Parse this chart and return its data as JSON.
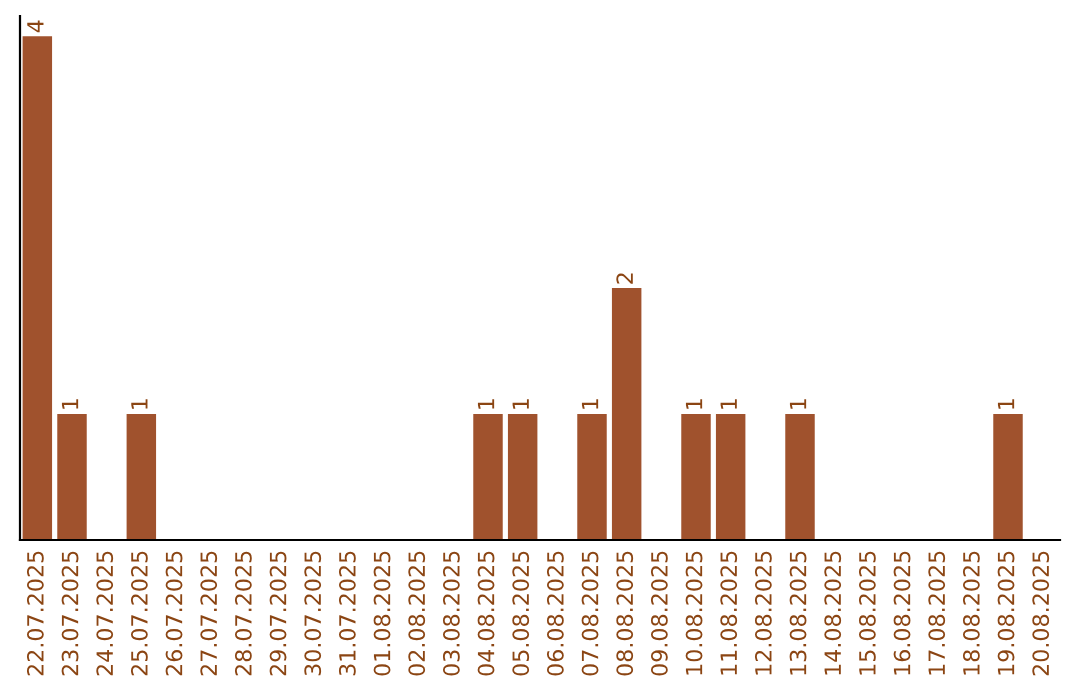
{
  "chart_data": {
    "type": "bar",
    "categories": [
      "22.07.2025",
      "23.07.2025",
      "24.07.2025",
      "25.07.2025",
      "26.07.2025",
      "27.07.2025",
      "28.07.2025",
      "29.07.2025",
      "30.07.2025",
      "31.07.2025",
      "01.08.2025",
      "02.08.2025",
      "03.08.2025",
      "04.08.2025",
      "05.08.2025",
      "06.08.2025",
      "07.08.2025",
      "08.08.2025",
      "09.08.2025",
      "10.08.2025",
      "11.08.2025",
      "12.08.2025",
      "13.08.2025",
      "14.08.2025",
      "15.08.2025",
      "16.08.2025",
      "17.08.2025",
      "18.08.2025",
      "19.08.2025",
      "20.08.2025"
    ],
    "values": [
      4,
      1,
      0,
      1,
      0,
      0,
      0,
      0,
      0,
      0,
      0,
      0,
      0,
      1,
      1,
      0,
      1,
      2,
      0,
      1,
      1,
      0,
      1,
      0,
      0,
      0,
      0,
      0,
      1,
      0
    ],
    "value_labels": [
      "4",
      "1",
      null,
      "1",
      null,
      null,
      null,
      null,
      null,
      null,
      null,
      null,
      null,
      "1",
      "1",
      null,
      "1",
      "2",
      null,
      "1",
      "1",
      null,
      "1",
      null,
      null,
      null,
      null,
      null,
      "1",
      null
    ],
    "color": "#a0522d",
    "tick_labels": "x",
    "grid": false,
    "legend": false
  }
}
